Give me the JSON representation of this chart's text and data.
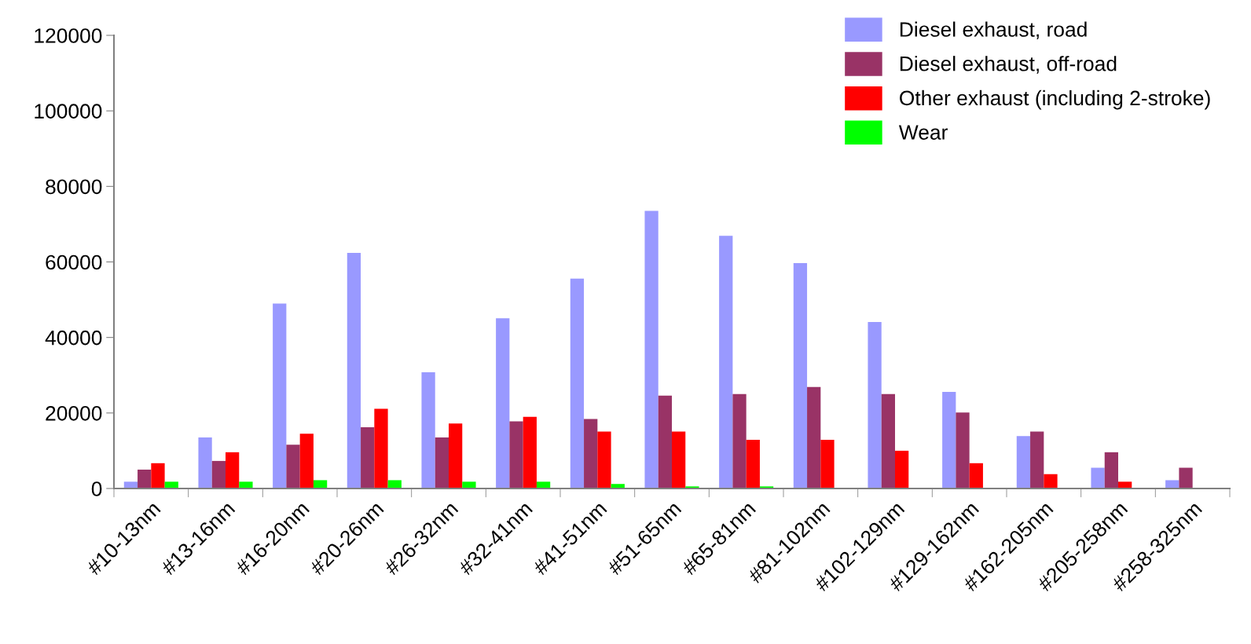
{
  "chart_data": {
    "type": "bar",
    "categories": [
      "#10-13nm",
      "#13-16nm",
      "#16-20nm",
      "#20-26nm",
      "#26-32nm",
      "#32-41nm",
      "#41-51nm",
      "#51-65nm",
      "#65-81nm",
      "#81-102nm",
      "#102-129nm",
      "#129-162nm",
      "#162-205nm",
      "#205-258nm",
      "#258-325nm"
    ],
    "series": [
      {
        "name": "Diesel exhaust, road",
        "color": "#9999ff",
        "values": [
          1800,
          13500,
          49000,
          62400,
          30800,
          45100,
          55600,
          73500,
          66900,
          59700,
          44100,
          25600,
          13900,
          5500,
          2200
        ]
      },
      {
        "name": "Diesel exhaust, off-road",
        "color": "#993366",
        "values": [
          5000,
          7300,
          11600,
          16200,
          13500,
          17800,
          18400,
          24600,
          25000,
          26900,
          25000,
          20100,
          15100,
          9600,
          5500
        ]
      },
      {
        "name": "Other exhaust (including 2-stroke)",
        "color": "#ff0000",
        "values": [
          6700,
          9600,
          14500,
          21100,
          17200,
          19000,
          15100,
          15100,
          12900,
          12900,
          10000,
          6700,
          3800,
          1800,
          0
        ]
      },
      {
        "name": "Wear",
        "color": "#00ff00",
        "values": [
          1800,
          1800,
          2200,
          2200,
          1800,
          1800,
          1200,
          550,
          550,
          0,
          0,
          0,
          0,
          0,
          0
        ]
      }
    ],
    "ylim": [
      0,
      120000
    ],
    "yticks": [
      0,
      20000,
      40000,
      60000,
      80000,
      100000,
      120000
    ],
    "grid": false,
    "legend": "top right"
  }
}
